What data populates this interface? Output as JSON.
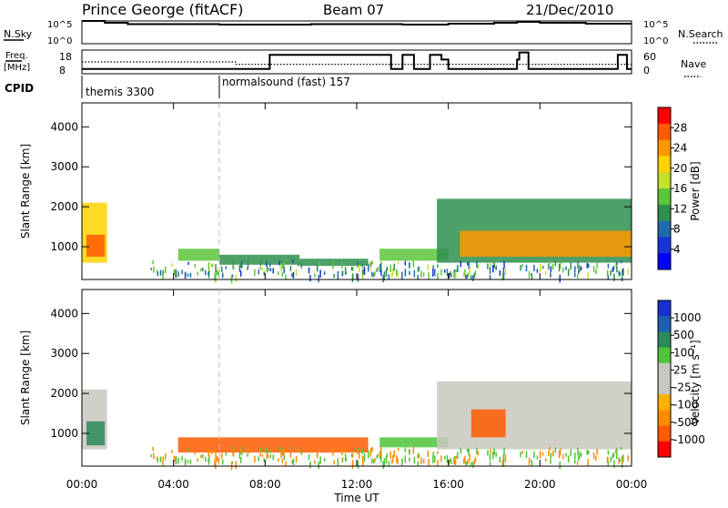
{
  "header": {
    "title": "Prince George (fitACF)",
    "beam": "Beam 07",
    "date": "21/Dec/2010"
  },
  "top_panels": {
    "nsky": {
      "left_label": "N.Sky",
      "left_ticks": [
        "10^5",
        "10^0"
      ],
      "right_ticks": [
        "10^5",
        "10^0"
      ],
      "right_label": "N.Search"
    },
    "freq": {
      "left_label_1": "Freq.",
      "left_label_2": "[MHz]",
      "left_ticks": [
        "18",
        "8"
      ],
      "right_ticks": [
        "60",
        "0"
      ],
      "right_label": "Nave"
    },
    "cpid": {
      "label": "CPID",
      "segments": [
        {
          "name": "themis 3300",
          "start_hour": 0,
          "end_hour": 6
        },
        {
          "name": "normalsound (fast) 157",
          "start_hour": 6,
          "end_hour": 24
        }
      ]
    }
  },
  "power_colorbar": {
    "label": "Power [dB]",
    "ticks": [
      "28",
      "24",
      "20",
      "16",
      "12",
      "8",
      "4"
    ],
    "colors": [
      "#ff0000",
      "#ff5a00",
      "#ff9800",
      "#ffd200",
      "#c4e02a",
      "#5cc63a",
      "#2f8f4f",
      "#1f6aaa",
      "#1535d8",
      "#0000ff"
    ]
  },
  "velocity_colorbar": {
    "label": "Velocity [m s⁻¹]",
    "ticks": [
      "1000",
      "500",
      "100",
      "25",
      "-25",
      "-100",
      "-500",
      "-1000"
    ],
    "colors": [
      "#1a2fcf",
      "#1f5fb0",
      "#2c8a5a",
      "#4fc43a",
      "#c8c8c0",
      "#c8c8c0",
      "#ffb000",
      "#ff8c00",
      "#ff5a00",
      "#ff0000"
    ]
  },
  "chart_data": [
    {
      "type": "line",
      "panel": "nsky-nsearch",
      "x": [
        0,
        0.5,
        1,
        2,
        4,
        6,
        8,
        10,
        12,
        14,
        16,
        18,
        19,
        20,
        22,
        24
      ],
      "series": [
        {
          "values": [
            5,
            5,
            4.6,
            4.3,
            4.3,
            4.2,
            4.2,
            4.3,
            4.3,
            4.2,
            4.4,
            4.6,
            4.8,
            4.6,
            4.4,
            4.4
          ]
        }
      ],
      "ylim": [
        0,
        5
      ]
    },
    {
      "type": "line",
      "panel": "freq-nave",
      "x": [
        0,
        6,
        6.7,
        8,
        8.2,
        13.5,
        14,
        14.5,
        15.2,
        15.7,
        16,
        17.5,
        18,
        19,
        19.1,
        19.5,
        20,
        23.4,
        23.8,
        24
      ],
      "series": [
        {
          "values": [
            10,
            10,
            10,
            10,
            16,
            10,
            16,
            10,
            16,
            14,
            10,
            10,
            10,
            14,
            17,
            10,
            10,
            16,
            10,
            10
          ]
        },
        {
          "values": [
            13,
            13,
            12,
            12,
            12,
            12,
            12,
            12,
            12,
            12,
            12,
            12,
            12,
            12,
            12,
            12,
            12,
            12,
            12,
            12
          ]
        }
      ],
      "ylim": [
        8,
        18
      ]
    },
    {
      "type": "heatmap",
      "title": "",
      "xlabel": "Time UT",
      "ylabel": "Slant Range [km]",
      "x_ticks": [
        "00:00",
        "04:00",
        "08:00",
        "12:00",
        "16:00",
        "20:00",
        "00:00"
      ],
      "y_ticks": [
        "1000",
        "2000",
        "3000",
        "4000"
      ],
      "xlim": [
        0,
        24
      ],
      "ylim": [
        180,
        4600
      ],
      "colorbar": "Power [dB]",
      "regions": [
        {
          "t0": 0.0,
          "t1": 1.1,
          "r0": 600,
          "r1": 2100,
          "value": 22
        },
        {
          "t0": 0.2,
          "t1": 1.0,
          "r0": 750,
          "r1": 1300,
          "value": 28
        },
        {
          "t0": 4.2,
          "t1": 6.0,
          "r0": 650,
          "r1": 950,
          "value": 14
        },
        {
          "t0": 6.0,
          "t1": 9.5,
          "r0": 550,
          "r1": 800,
          "value": 12
        },
        {
          "t0": 9.5,
          "t1": 12.5,
          "r0": 520,
          "r1": 700,
          "value": 10
        },
        {
          "t0": 13.0,
          "t1": 16.0,
          "r0": 650,
          "r1": 950,
          "value": 14
        },
        {
          "t0": 15.5,
          "t1": 24.0,
          "r0": 600,
          "r1": 2200,
          "value": 12
        },
        {
          "t0": 16.5,
          "t1": 24.0,
          "r0": 750,
          "r1": 1400,
          "value": 26
        }
      ]
    },
    {
      "type": "heatmap",
      "title": "",
      "xlabel": "Time UT",
      "ylabel": "Slant Range [km]",
      "x_ticks": [
        "00:00",
        "04:00",
        "08:00",
        "12:00",
        "16:00",
        "20:00",
        "00:00"
      ],
      "y_ticks": [
        "1000",
        "2000",
        "3000",
        "4000"
      ],
      "xlim": [
        0,
        24
      ],
      "ylim": [
        180,
        4600
      ],
      "colorbar": "Velocity [m s⁻¹]",
      "regions": [
        {
          "t0": 0.0,
          "t1": 1.1,
          "r0": 600,
          "r1": 2100,
          "value": 0
        },
        {
          "t0": 0.2,
          "t1": 1.0,
          "r0": 700,
          "r1": 1300,
          "value": 100
        },
        {
          "t0": 4.2,
          "t1": 12.5,
          "r0": 520,
          "r1": 900,
          "value": -300
        },
        {
          "t0": 13.0,
          "t1": 16.0,
          "r0": 650,
          "r1": 900,
          "value": 50
        },
        {
          "t0": 15.5,
          "t1": 24.0,
          "r0": 600,
          "r1": 2300,
          "value": 0
        },
        {
          "t0": 17.0,
          "t1": 18.5,
          "r0": 900,
          "r1": 1600,
          "value": -200
        }
      ]
    }
  ]
}
